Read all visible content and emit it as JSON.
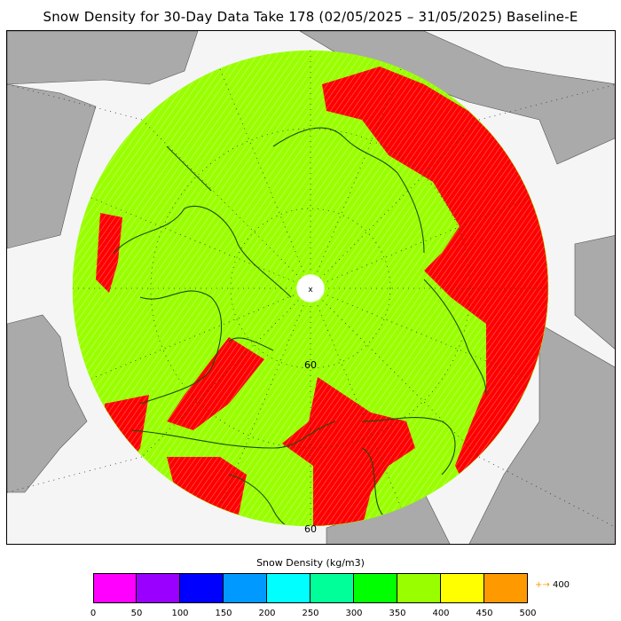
{
  "title": "Snow Density for 30-Day Data Take 178 (02/05/2025 – 31/05/2025) Baseline-E",
  "map": {
    "projection": "north-polar-stereographic",
    "land_color": "#aaaaaa",
    "ocean_color": "#f5f5f5",
    "snow_color": "#99ff00",
    "high_density_color": "#ff0000",
    "latitude_labels": [
      "60",
      "60"
    ],
    "pole_symbol": "x"
  },
  "colorbar": {
    "label": "Snow Density (kg/m3)",
    "colors": [
      "#ff00ff",
      "#9900ff",
      "#0000ff",
      "#0099ff",
      "#00ffff",
      "#00ff99",
      "#00ff00",
      "#99ff00",
      "#ffff00",
      "#ff9900"
    ],
    "ticks": [
      "0",
      "50",
      "100",
      "150",
      "200",
      "250",
      "300",
      "350",
      "400",
      "450",
      "500"
    ],
    "overflow_label": "400",
    "overflow_arrow": "+→"
  }
}
